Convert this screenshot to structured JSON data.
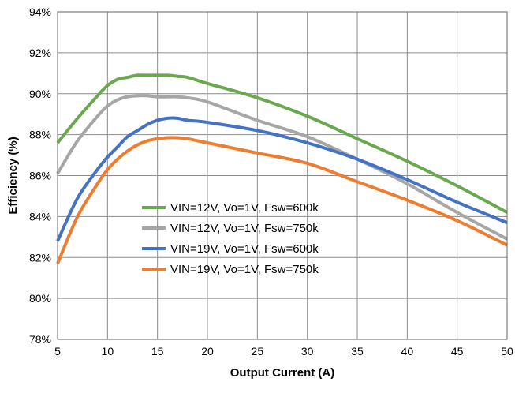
{
  "chart_data": {
    "type": "line",
    "title": "",
    "xlabel": "Output Current (A)",
    "ylabel": "Efficiency (%)",
    "xlim": [
      5,
      50
    ],
    "ylim": [
      78,
      94
    ],
    "x_ticks": [
      5,
      10,
      15,
      20,
      25,
      30,
      35,
      40,
      45,
      50
    ],
    "y_ticks": [
      78,
      80,
      82,
      84,
      86,
      88,
      90,
      92,
      94
    ],
    "x_tick_labels": [
      "5",
      "10",
      "15",
      "20",
      "25",
      "30",
      "35",
      "40",
      "45",
      "50"
    ],
    "y_tick_labels": [
      "78%",
      "80%",
      "82%",
      "84%",
      "86%",
      "88%",
      "90%",
      "92%",
      "94%"
    ],
    "grid": true,
    "legend_position": "center-left",
    "series": [
      {
        "name": "VIN=12V, Vo=1V, Fsw=600k",
        "color": "#6aa84f",
        "x": [
          5,
          7,
          9,
          10,
          11,
          12,
          13,
          14,
          15,
          16,
          17,
          18,
          20,
          25,
          30,
          35,
          40,
          45,
          50
        ],
        "y": [
          87.6,
          88.8,
          89.9,
          90.4,
          90.7,
          90.8,
          90.9,
          90.9,
          90.9,
          90.9,
          90.85,
          90.8,
          90.5,
          89.8,
          88.9,
          87.8,
          86.7,
          85.5,
          84.2
        ]
      },
      {
        "name": "VIN=12V, Vo=1V, Fsw=750k",
        "color": "#a6a6a6",
        "x": [
          5,
          7,
          9,
          10,
          11,
          12,
          13,
          14,
          15,
          16,
          17,
          18,
          20,
          25,
          30,
          35,
          40,
          45,
          50
        ],
        "y": [
          86.1,
          87.7,
          88.9,
          89.4,
          89.7,
          89.85,
          89.9,
          89.9,
          89.85,
          89.85,
          89.85,
          89.8,
          89.6,
          88.7,
          87.9,
          86.8,
          85.6,
          84.2,
          82.9
        ]
      },
      {
        "name": "VIN=19V, Vo=1V, Fsw=600k",
        "color": "#4472c4",
        "x": [
          5,
          7,
          9,
          10,
          11,
          12,
          13,
          14,
          15,
          16,
          17,
          18,
          20,
          25,
          30,
          35,
          40,
          45,
          50
        ],
        "y": [
          82.8,
          84.9,
          86.3,
          86.9,
          87.4,
          87.9,
          88.2,
          88.5,
          88.7,
          88.8,
          88.8,
          88.7,
          88.6,
          88.2,
          87.6,
          86.8,
          85.8,
          84.7,
          83.7
        ]
      },
      {
        "name": "VIN=19V, Vo=1V, Fsw=750k",
        "color": "#ed7d31",
        "x": [
          5,
          7,
          9,
          10,
          11,
          12,
          13,
          14,
          15,
          16,
          17,
          18,
          20,
          25,
          30,
          35,
          40,
          45,
          50
        ],
        "y": [
          81.7,
          84.0,
          85.6,
          86.3,
          86.8,
          87.2,
          87.5,
          87.7,
          87.8,
          87.85,
          87.85,
          87.8,
          87.6,
          87.1,
          86.6,
          85.7,
          84.8,
          83.8,
          82.6
        ]
      }
    ]
  }
}
